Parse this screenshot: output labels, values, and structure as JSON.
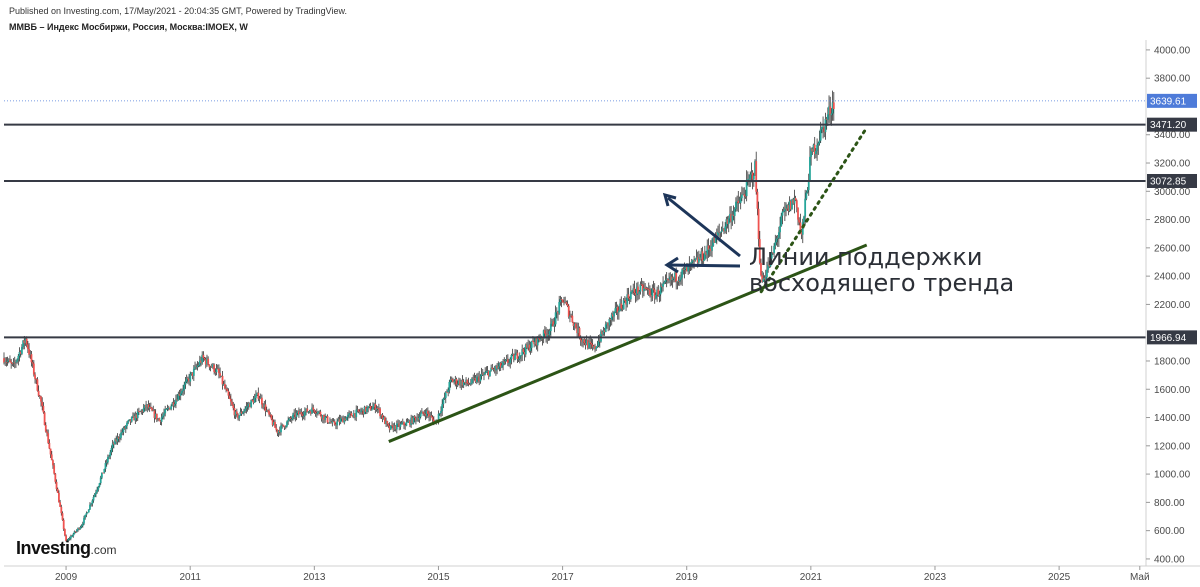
{
  "header": {
    "published": "Published on Investing.com, 17/May/2021 - 20:04:35 GMT, Powered by TradingView.",
    "symbol": "ММВБ – Индекс Мосбиржи, Россия, Москва:IMOEX, W"
  },
  "logo": {
    "main": "Investing",
    "suffix": ".com"
  },
  "chart_data": {
    "type": "candlestick",
    "title": "ММВБ – Индекс Мосбиржи, Россия, Москва:IMOEX, W",
    "ylim": [
      350,
      4070
    ],
    "xlim": [
      2008.0,
      2026.4
    ],
    "y_ticks": [
      "400.00",
      "600.00",
      "800.00",
      "1000.00",
      "1200.00",
      "1400.00",
      "1600.00",
      "1800.00",
      "2200.00",
      "2400.00",
      "2600.00",
      "2800.00",
      "3000.00",
      "3200.00",
      "3400.00",
      "3800.00",
      "4000.00"
    ],
    "x_ticks": [
      {
        "label": "2009",
        "x": 2009.0
      },
      {
        "label": "2011",
        "x": 2011.0
      },
      {
        "label": "2013",
        "x": 2013.0
      },
      {
        "label": "2015",
        "x": 2015.0
      },
      {
        "label": "2017",
        "x": 2017.0
      },
      {
        "label": "2019",
        "x": 2019.0
      },
      {
        "label": "2021",
        "x": 2021.0
      },
      {
        "label": "2023",
        "x": 2023.0
      },
      {
        "label": "2025",
        "x": 2025.0
      },
      {
        "label": "Май",
        "x": 2026.3
      }
    ],
    "price_path": [
      [
        2008.0,
        1820
      ],
      [
        2008.15,
        1760
      ],
      [
        2008.35,
        1960
      ],
      [
        2008.6,
        1500
      ],
      [
        2008.85,
        900
      ],
      [
        2009.0,
        520
      ],
      [
        2009.25,
        640
      ],
      [
        2009.5,
        900
      ],
      [
        2009.75,
        1200
      ],
      [
        2010.0,
        1360
      ],
      [
        2010.3,
        1480
      ],
      [
        2010.5,
        1380
      ],
      [
        2010.75,
        1520
      ],
      [
        2011.2,
        1820
      ],
      [
        2011.45,
        1720
      ],
      [
        2011.75,
        1400
      ],
      [
        2012.1,
        1560
      ],
      [
        2012.4,
        1300
      ],
      [
        2012.7,
        1420
      ],
      [
        2013.0,
        1460
      ],
      [
        2013.3,
        1350
      ],
      [
        2013.6,
        1420
      ],
      [
        2014.0,
        1480
      ],
      [
        2014.2,
        1320
      ],
      [
        2014.5,
        1360
      ],
      [
        2014.8,
        1440
      ],
      [
        2014.95,
        1360
      ],
      [
        2015.2,
        1660
      ],
      [
        2015.5,
        1640
      ],
      [
        2015.8,
        1720
      ],
      [
        2016.0,
        1760
      ],
      [
        2016.4,
        1880
      ],
      [
        2016.8,
        2020
      ],
      [
        2017.0,
        2240
      ],
      [
        2017.3,
        1960
      ],
      [
        2017.5,
        1880
      ],
      [
        2017.75,
        2080
      ],
      [
        2018.1,
        2280
      ],
      [
        2018.3,
        2310
      ],
      [
        2018.5,
        2270
      ],
      [
        2018.75,
        2370
      ],
      [
        2019.0,
        2440
      ],
      [
        2019.3,
        2560
      ],
      [
        2019.6,
        2750
      ],
      [
        2019.9,
        2960
      ],
      [
        2020.1,
        3170
      ],
      [
        2020.2,
        2350
      ],
      [
        2020.35,
        2500
      ],
      [
        2020.55,
        2830
      ],
      [
        2020.75,
        2950
      ],
      [
        2020.85,
        2680
      ],
      [
        2021.0,
        3250
      ],
      [
        2021.2,
        3450
      ],
      [
        2021.37,
        3640
      ]
    ],
    "support_levels": [
      {
        "label": "1966.94",
        "value": 1966.94,
        "color": "#363a45"
      },
      {
        "label": "3072.85",
        "value": 3072.85,
        "color": "#363a45"
      },
      {
        "label": "3471.20",
        "value": 3471.2,
        "color": "#363a45"
      }
    ],
    "last_price": {
      "label": "3639.61",
      "value": 3639.61,
      "color": "#4e7bd9"
    },
    "trend_lines": [
      {
        "style": "solid",
        "from": [
          2014.2,
          1230
        ],
        "to": [
          2021.9,
          2620
        ],
        "color": "#2c5416"
      },
      {
        "style": "dotted",
        "from": [
          2020.2,
          2290
        ],
        "to": [
          2021.9,
          3450
        ],
        "color": "#2c5416"
      }
    ],
    "annotation": {
      "lines": [
        "Линии поддержки",
        "восходящего тренда"
      ]
    },
    "colors": {
      "up": "#26a69a",
      "down": "#ef5350",
      "wick": "#333333"
    }
  }
}
